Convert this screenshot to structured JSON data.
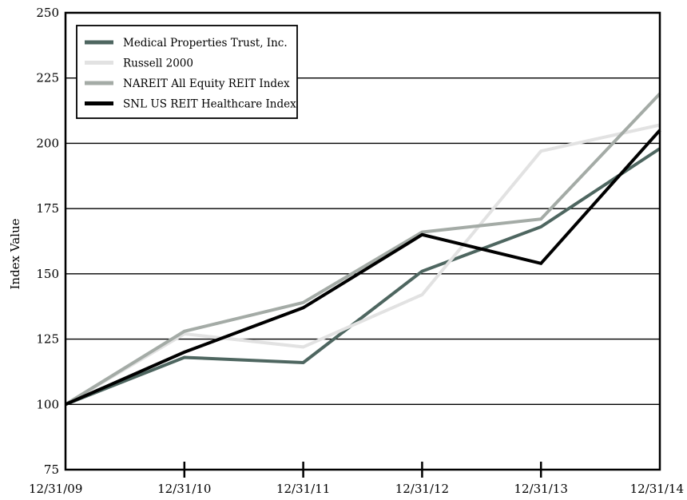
{
  "chart_data": {
    "type": "line",
    "title": "",
    "xlabel": "",
    "ylabel": "Index Value",
    "categories": [
      "12/31/09",
      "12/31/10",
      "12/31/11",
      "12/31/12",
      "12/31/13",
      "12/31/14"
    ],
    "ylim": [
      75,
      250
    ],
    "yticks": [
      75,
      100,
      125,
      150,
      175,
      200,
      225,
      250
    ],
    "grid": true,
    "legend_position": "top-left",
    "series": [
      {
        "name": "Medical Properties Trust, Inc.",
        "color": "#4e6660",
        "values": [
          100,
          118,
          116,
          151,
          168,
          198
        ]
      },
      {
        "name": "Russell 2000",
        "color": "#e2e2e2",
        "values": [
          100,
          127,
          122,
          142,
          197,
          207
        ]
      },
      {
        "name": "NAREIT All Equity REIT Index",
        "color": "#a4aba6",
        "values": [
          100,
          128,
          139,
          166,
          171,
          219
        ]
      },
      {
        "name": "SNL US REIT Healthcare Index",
        "color": "#000000",
        "values": [
          100,
          120,
          137,
          165,
          154,
          205
        ]
      }
    ]
  }
}
